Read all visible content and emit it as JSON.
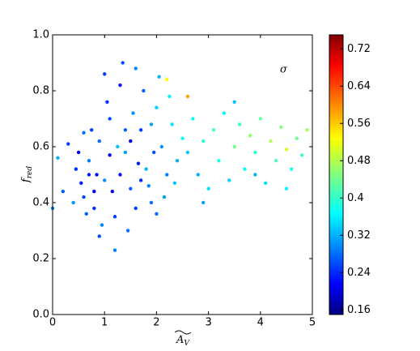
{
  "chart_data": {
    "type": "scatter",
    "ylabel": "f",
    "ylabel_sub": "red",
    "xlabel": "A",
    "xlabel_sub": "V",
    "annotation": "σ",
    "xlim": [
      0,
      5
    ],
    "xticks": [
      0,
      1,
      2,
      3,
      4,
      5
    ],
    "ylim": [
      0,
      1
    ],
    "yticks": [
      {
        "value": 0,
        "label": "0.0"
      },
      {
        "value": 0.2,
        "label": "0.2"
      },
      {
        "value": 0.4,
        "label": "0.4"
      },
      {
        "value": 0.6,
        "label": "0.6"
      },
      {
        "value": 0.8,
        "label": "0.8"
      },
      {
        "value": 1,
        "label": "1.0"
      }
    ],
    "colormap": "jet",
    "clim": [
      0.15,
      0.75
    ],
    "cticks": [
      0.16,
      0.24,
      0.32,
      0.4,
      0.48,
      0.56,
      0.64,
      0.72
    ],
    "x": [
      0.6,
      0.7,
      0.8,
      0.9,
      1.0,
      1.1,
      1.2,
      1.3,
      1.4,
      1.5,
      1.6,
      1.7,
      1.8,
      1.9,
      2.0,
      2.1,
      2.2,
      2.3,
      2.4,
      2.5,
      0.5,
      0.55,
      0.65,
      0.75,
      0.85,
      0.95,
      1.05,
      1.15,
      1.25,
      1.35,
      1.45,
      1.55,
      1.65,
      1.75,
      1.85,
      1.95,
      2.05,
      2.15,
      2.25,
      2.35,
      0.0,
      0.1,
      0.2,
      0.3,
      0.4,
      0.45,
      0.6,
      0.9,
      1.0,
      1.2,
      1.3,
      1.4,
      1.6,
      1.1,
      0.8,
      1.7,
      1.9,
      2.0,
      1.5,
      0.7,
      2.6,
      2.7,
      2.8,
      2.9,
      3.0,
      3.1,
      3.2,
      3.3,
      3.4,
      3.5,
      3.6,
      3.7,
      3.8,
      3.9,
      4.0,
      4.1,
      4.2,
      4.3,
      4.4,
      4.5,
      4.6,
      4.7,
      4.8,
      4.9,
      2.9,
      3.5,
      2.2,
      2.6,
      4.5,
      3.9
    ],
    "values": [
      0.42,
      0.55,
      0.38,
      0.62,
      0.48,
      0.7,
      0.35,
      0.82,
      0.58,
      0.45,
      0.88,
      0.66,
      0.52,
      0.4,
      0.74,
      0.6,
      0.5,
      0.68,
      0.55,
      0.63,
      0.58,
      0.47,
      0.36,
      0.66,
      0.5,
      0.32,
      0.76,
      0.44,
      0.6,
      0.9,
      0.3,
      0.72,
      0.54,
      0.8,
      0.46,
      0.58,
      0.85,
      0.42,
      0.78,
      0.47,
      0.38,
      0.56,
      0.44,
      0.61,
      0.4,
      0.52,
      0.65,
      0.28,
      0.86,
      0.23,
      0.5,
      0.66,
      0.38,
      0.57,
      0.44,
      0.48,
      0.68,
      0.36,
      0.62,
      0.5,
      0.58,
      0.7,
      0.5,
      0.62,
      0.45,
      0.66,
      0.55,
      0.72,
      0.48,
      0.6,
      0.68,
      0.52,
      0.64,
      0.58,
      0.7,
      0.47,
      0.62,
      0.55,
      0.67,
      0.59,
      0.52,
      0.63,
      0.57,
      0.66,
      0.4,
      0.76,
      0.84,
      0.78,
      0.45,
      0.5
    ],
    "c": [
      0.27,
      0.3,
      0.25,
      0.29,
      0.31,
      0.27,
      0.26,
      0.24,
      0.32,
      0.28,
      0.3,
      0.26,
      0.33,
      0.29,
      0.35,
      0.31,
      0.3,
      0.36,
      0.33,
      0.38,
      0.22,
      0.24,
      0.28,
      0.26,
      0.23,
      0.3,
      0.25,
      0.22,
      0.34,
      0.27,
      0.29,
      0.31,
      0.24,
      0.28,
      0.3,
      0.27,
      0.33,
      0.32,
      0.37,
      0.34,
      0.3,
      0.33,
      0.28,
      0.26,
      0.31,
      0.25,
      0.29,
      0.27,
      0.26,
      0.3,
      0.23,
      0.28,
      0.26,
      0.22,
      0.2,
      0.25,
      0.32,
      0.29,
      0.21,
      0.24,
      0.34,
      0.38,
      0.33,
      0.4,
      0.36,
      0.42,
      0.39,
      0.37,
      0.35,
      0.44,
      0.41,
      0.38,
      0.46,
      0.4,
      0.43,
      0.36,
      0.48,
      0.42,
      0.45,
      0.5,
      0.39,
      0.44,
      0.41,
      0.47,
      0.32,
      0.34,
      0.52,
      0.58,
      0.37,
      0.33
    ]
  }
}
